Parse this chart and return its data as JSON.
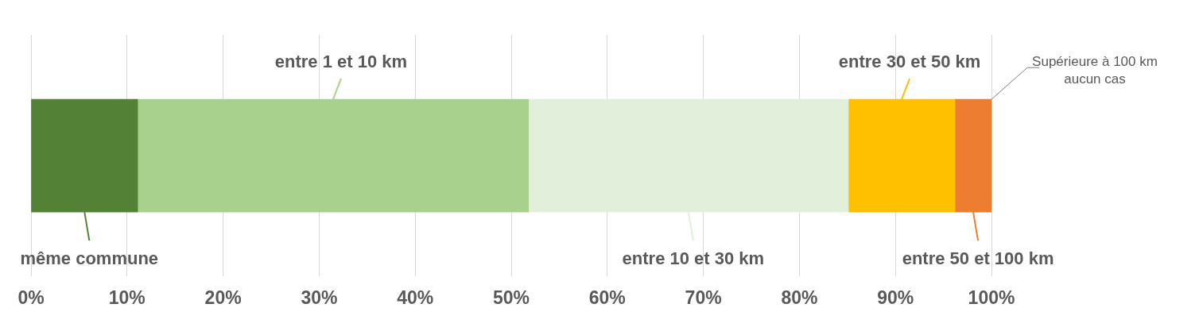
{
  "chart_data": {
    "type": "bar",
    "orientation": "horizontal",
    "stacked": true,
    "categories": [
      null
    ],
    "series": [
      {
        "name": "même commune",
        "color": "#538135",
        "values": [
          11.1
        ]
      },
      {
        "name": "entre 1 et 10 km",
        "color": "#a9d18e",
        "values": [
          40.7
        ]
      },
      {
        "name": "entre 10 et 30 km",
        "color": "#e2efda",
        "values": [
          33.3
        ]
      },
      {
        "name": "entre 30 et 50 km",
        "color": "#ffc000",
        "values": [
          11.1
        ]
      },
      {
        "name": "entre 50 et 100 km",
        "color": "#ed7d31",
        "values": [
          3.8
        ]
      },
      {
        "name": "Supérieure à 100 km",
        "color": "#7f7f7f",
        "values": [
          0
        ]
      }
    ],
    "annotations": [
      "aucun cas"
    ],
    "xlim": [
      0,
      100
    ],
    "xticks": [
      {
        "value": 0,
        "label": "0%"
      },
      {
        "value": 10,
        "label": "10%"
      },
      {
        "value": 20,
        "label": "20%"
      },
      {
        "value": 30,
        "label": "30%"
      },
      {
        "value": 40,
        "label": "40%"
      },
      {
        "value": 50,
        "label": "50%"
      },
      {
        "value": 60,
        "label": "60%"
      },
      {
        "value": 70,
        "label": "70%"
      },
      {
        "value": 80,
        "label": "80%"
      },
      {
        "value": 90,
        "label": "90%"
      },
      {
        "value": 100,
        "label": "100%"
      }
    ],
    "grid": "x",
    "legend": "bottom"
  }
}
